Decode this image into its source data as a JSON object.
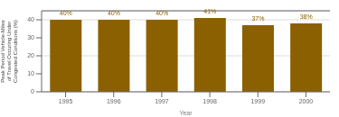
{
  "chart_data": {
    "type": "bar",
    "categories": [
      "1995",
      "1996",
      "1997",
      "1998",
      "1999",
      "2000"
    ],
    "values": [
      40,
      40,
      40,
      41,
      37,
      38
    ],
    "value_labels": [
      "40%",
      "40%",
      "40%",
      "41%",
      "37%",
      "38%"
    ],
    "data_labels": true,
    "color": "#8B6000",
    "xlabel": "Year",
    "ylabel": "Peak Period Vehicle-Miles\nof Travel Occuring Under\nCongested Conditions (%)",
    "ylim": [
      0,
      45
    ],
    "yticks": [
      0,
      10,
      20,
      30,
      40
    ],
    "grid": true
  }
}
